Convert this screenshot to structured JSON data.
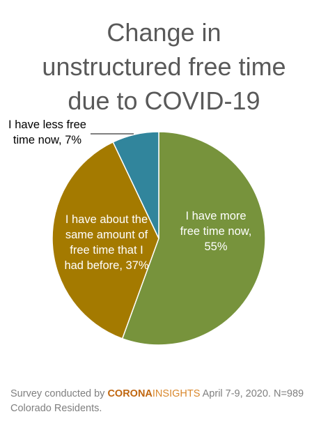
{
  "chart_data": {
    "type": "pie",
    "title": [
      "Change in",
      "unstructured free time",
      "due to COVID-19"
    ],
    "values": [
      55,
      37,
      7
    ],
    "value_labels": [
      "I have more free time now, 55%",
      "I have about the same amount of free time that I had before, 37%",
      "I have less free time now, 7%"
    ],
    "colors": [
      "#77933c",
      "#a47a00",
      "#31859c"
    ],
    "footer": [
      "Survey conducted by",
      "CORONA",
      "INSIGHTS",
      "April 7-9, 2020. N=989 Colorado Residents."
    ]
  }
}
